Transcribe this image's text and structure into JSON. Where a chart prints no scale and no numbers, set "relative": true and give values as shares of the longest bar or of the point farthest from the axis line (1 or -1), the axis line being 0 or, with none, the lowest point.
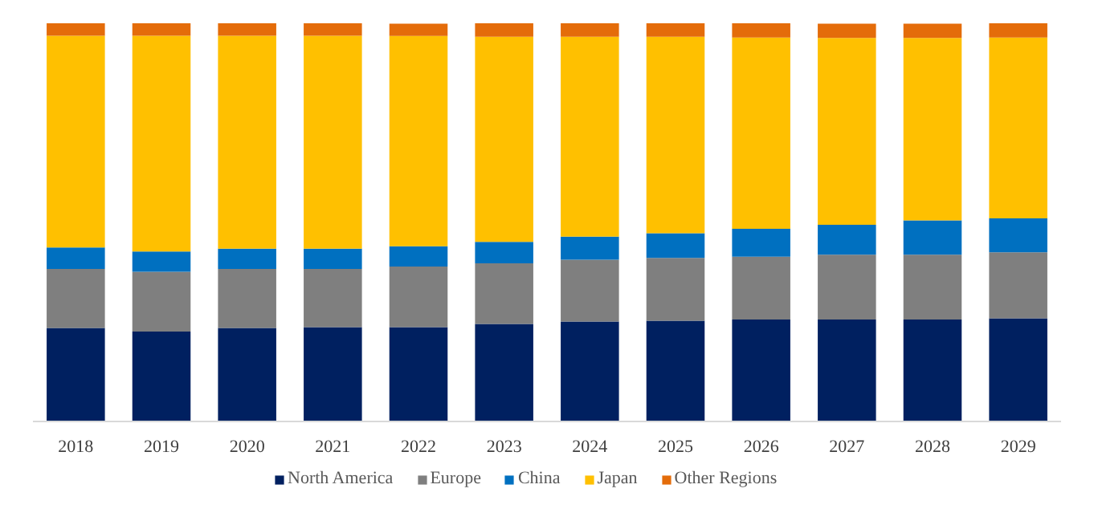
{
  "chart_data": {
    "type": "bar",
    "stacked": true,
    "relative": true,
    "legend": "bottom",
    "grid": false,
    "categories": [
      "2018",
      "2019",
      "2020",
      "2021",
      "2022",
      "2023",
      "2024",
      "2025",
      "2026",
      "2027",
      "2028",
      "2029"
    ],
    "series": [
      {
        "name": "North America",
        "color": "#002060",
        "values": [
          0.235,
          0.226,
          0.235,
          0.237,
          0.237,
          0.245,
          0.251,
          0.253,
          0.256,
          0.256,
          0.256,
          0.259
        ]
      },
      {
        "name": "Europe",
        "color": "#7f7f7f",
        "values": [
          0.148,
          0.15,
          0.148,
          0.146,
          0.152,
          0.152,
          0.155,
          0.158,
          0.158,
          0.163,
          0.163,
          0.166
        ]
      },
      {
        "name": "China",
        "color": "#0070c0",
        "values": [
          0.054,
          0.051,
          0.051,
          0.051,
          0.051,
          0.054,
          0.058,
          0.062,
          0.07,
          0.075,
          0.086,
          0.085
        ]
      },
      {
        "name": "Japan",
        "color": "#ffc000",
        "values": [
          0.532,
          0.542,
          0.535,
          0.535,
          0.528,
          0.515,
          0.502,
          0.493,
          0.48,
          0.469,
          0.458,
          0.454
        ]
      },
      {
        "name": "Other Regions",
        "color": "#e46c0a",
        "values": [
          0.031,
          0.031,
          0.031,
          0.031,
          0.031,
          0.034,
          0.034,
          0.034,
          0.036,
          0.036,
          0.036,
          0.036
        ]
      }
    ]
  }
}
